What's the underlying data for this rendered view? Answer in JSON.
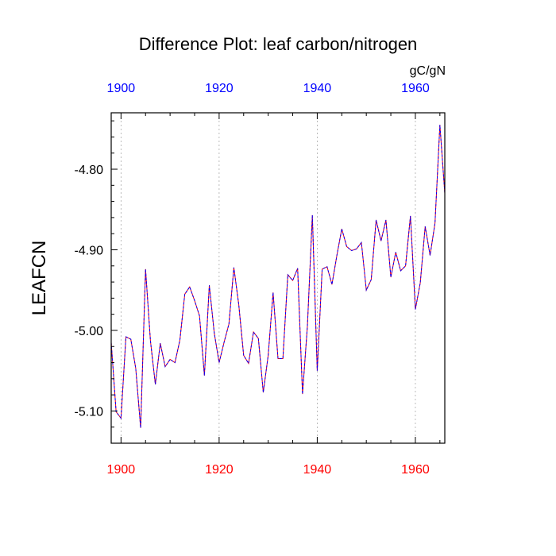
{
  "chart_data": {
    "type": "line",
    "title": "Difference Plot: leaf carbon/nitrogen",
    "units": "gC/gN",
    "ylabel": "LEAFCN",
    "xlabel": "",
    "xlim": [
      1898,
      1966
    ],
    "ylim": [
      -5.14,
      -4.73
    ],
    "x_ticks": [
      1900,
      1920,
      1940,
      1960
    ],
    "x_tick_labels": [
      "1900",
      "1920",
      "1940",
      "1960"
    ],
    "y_ticks": [
      -5.1,
      -5.0,
      -4.9,
      -4.8
    ],
    "y_tick_labels": [
      "-5.10",
      "-5.00",
      "-4.90",
      "-4.80"
    ],
    "y_minor_step": 0.02,
    "x_minor_step": 5,
    "grid": "vertical-dashed",
    "colors": {
      "top_axis_labels": "#0000ff",
      "bottom_axis_labels": "#ff0000",
      "series_a": "#ff0000",
      "series_b": "#0000ff",
      "grid": "#aaaaaa",
      "axis": "#000000"
    },
    "x": [
      1898,
      1899,
      1900,
      1901,
      1902,
      1903,
      1904,
      1905,
      1906,
      1907,
      1908,
      1909,
      1910,
      1911,
      1912,
      1913,
      1914,
      1915,
      1916,
      1917,
      1918,
      1919,
      1920,
      1921,
      1922,
      1923,
      1924,
      1925,
      1926,
      1927,
      1928,
      1929,
      1930,
      1931,
      1932,
      1933,
      1934,
      1935,
      1936,
      1937,
      1938,
      1939,
      1940,
      1941,
      1942,
      1943,
      1944,
      1945,
      1946,
      1947,
      1948,
      1949,
      1950,
      1951,
      1952,
      1953,
      1954,
      1955,
      1956,
      1957,
      1958,
      1959,
      1960,
      1961,
      1962,
      1963,
      1964,
      1965,
      1966
    ],
    "series": [
      {
        "name": "LEAFCN difference",
        "values": [
          -5.015,
          -5.101,
          -5.109,
          -5.008,
          -5.011,
          -5.047,
          -5.121,
          -4.924,
          -5.013,
          -5.067,
          -5.016,
          -5.045,
          -5.036,
          -5.04,
          -5.012,
          -4.955,
          -4.946,
          -4.963,
          -4.982,
          -5.056,
          -4.944,
          -5.003,
          -5.04,
          -5.015,
          -4.992,
          -4.922,
          -4.968,
          -5.031,
          -5.041,
          -5.002,
          -5.01,
          -5.077,
          -5.031,
          -4.953,
          -5.035,
          -5.035,
          -4.931,
          -4.938,
          -4.923,
          -5.079,
          -4.994,
          -4.857,
          -5.05,
          -4.924,
          -4.921,
          -4.943,
          -4.907,
          -4.874,
          -4.896,
          -4.901,
          -4.899,
          -4.891,
          -4.95,
          -4.937,
          -4.863,
          -4.889,
          -4.863,
          -4.934,
          -4.903,
          -4.926,
          -4.92,
          -4.858,
          -4.974,
          -4.941,
          -4.871,
          -4.907,
          -4.867,
          -4.745,
          -4.83
        ]
      }
    ]
  }
}
